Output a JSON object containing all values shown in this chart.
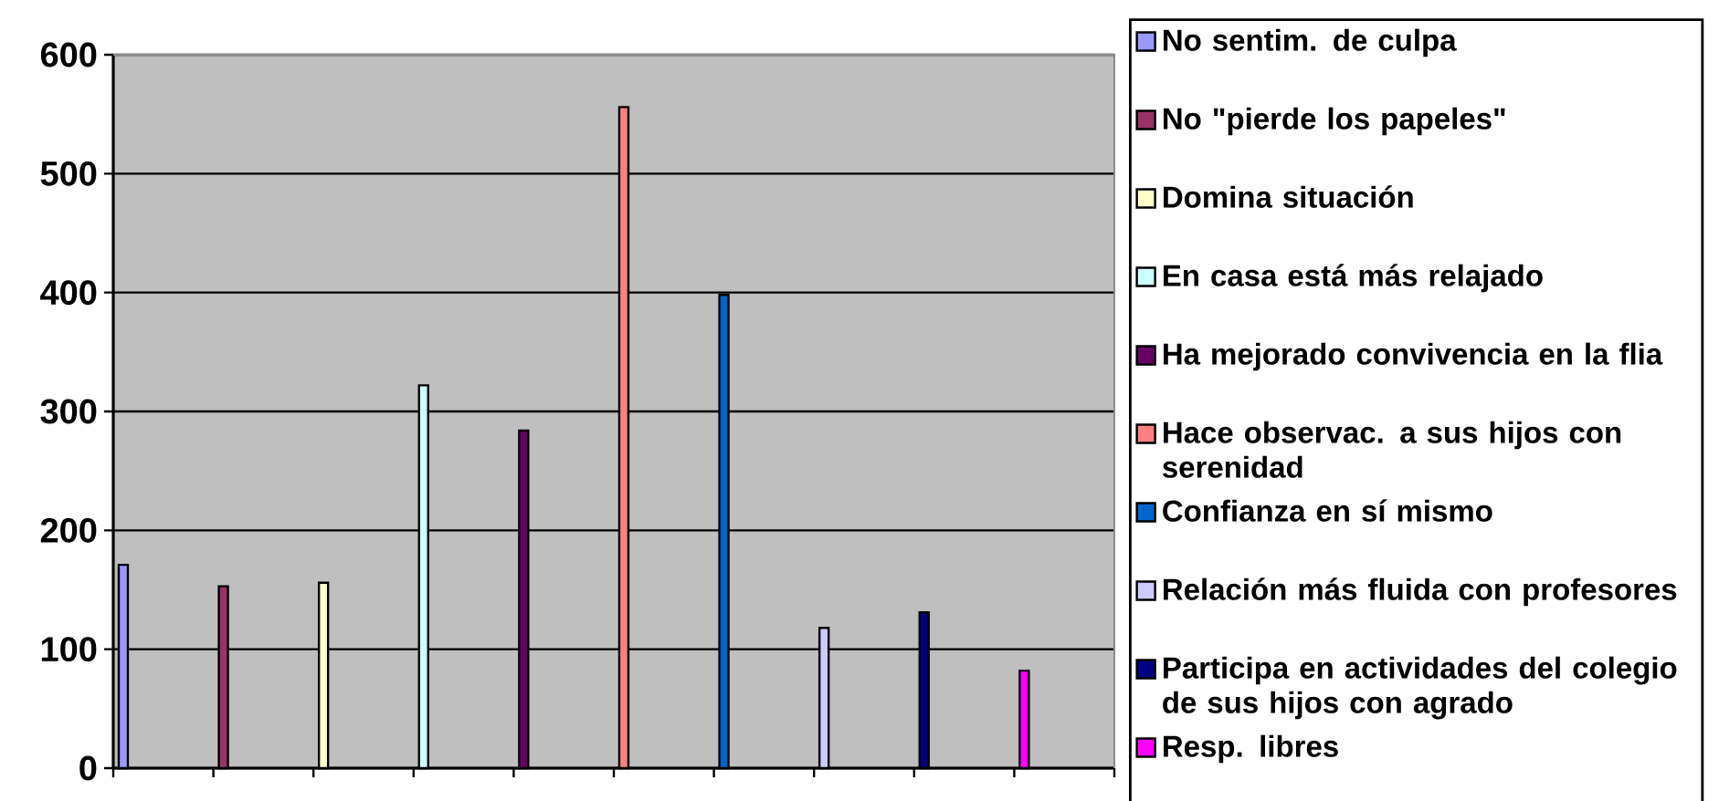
{
  "chart_data": {
    "type": "bar",
    "categories": [
      null,
      null,
      null,
      null,
      null,
      null,
      null,
      null,
      null,
      null
    ],
    "series": [
      {
        "name": "No sentim. de culpa",
        "color": "#9999ff",
        "values": [
          171,
          null,
          null,
          null,
          null,
          null,
          null,
          null,
          null,
          null
        ]
      },
      {
        "name": "No \"pierde los papeles\"",
        "color": "#993366",
        "values": [
          null,
          153,
          null,
          null,
          null,
          null,
          null,
          null,
          null,
          null
        ]
      },
      {
        "name": "Domina situación",
        "color": "#ffffcc",
        "values": [
          null,
          null,
          156,
          null,
          null,
          null,
          null,
          null,
          null,
          null
        ]
      },
      {
        "name": "En casa está más relajado",
        "color": "#ccffff",
        "values": [
          null,
          null,
          null,
          322,
          null,
          null,
          null,
          null,
          null,
          null
        ]
      },
      {
        "name": "Ha mejorado convivencia en la flia",
        "color": "#660066",
        "values": [
          null,
          null,
          null,
          null,
          284,
          null,
          null,
          null,
          null,
          null
        ]
      },
      {
        "name": "Hace observac. a sus hijos con serenidad",
        "color": "#ff8080",
        "values": [
          null,
          null,
          null,
          null,
          null,
          556,
          null,
          null,
          null,
          null
        ]
      },
      {
        "name": "Confianza en sí mismo",
        "color": "#0066cc",
        "values": [
          null,
          null,
          null,
          null,
          null,
          null,
          398,
          null,
          null,
          null
        ]
      },
      {
        "name": "Relación más fluida con profesores",
        "color": "#ccccff",
        "values": [
          null,
          null,
          null,
          null,
          null,
          null,
          null,
          118,
          null,
          null
        ]
      },
      {
        "name": "Participa en actividades del colegio de sus hijos con agrado",
        "color": "#000080",
        "values": [
          null,
          null,
          null,
          null,
          null,
          null,
          null,
          null,
          131,
          null
        ]
      },
      {
        "name": "Resp. libres",
        "color": "#ff00ff",
        "values": [
          null,
          null,
          null,
          null,
          null,
          null,
          null,
          null,
          null,
          82
        ]
      }
    ],
    "ylim": [
      0,
      600
    ],
    "yticks": [
      0,
      100,
      200,
      300,
      400,
      500,
      600
    ],
    "grid": "y",
    "legend": "right"
  }
}
